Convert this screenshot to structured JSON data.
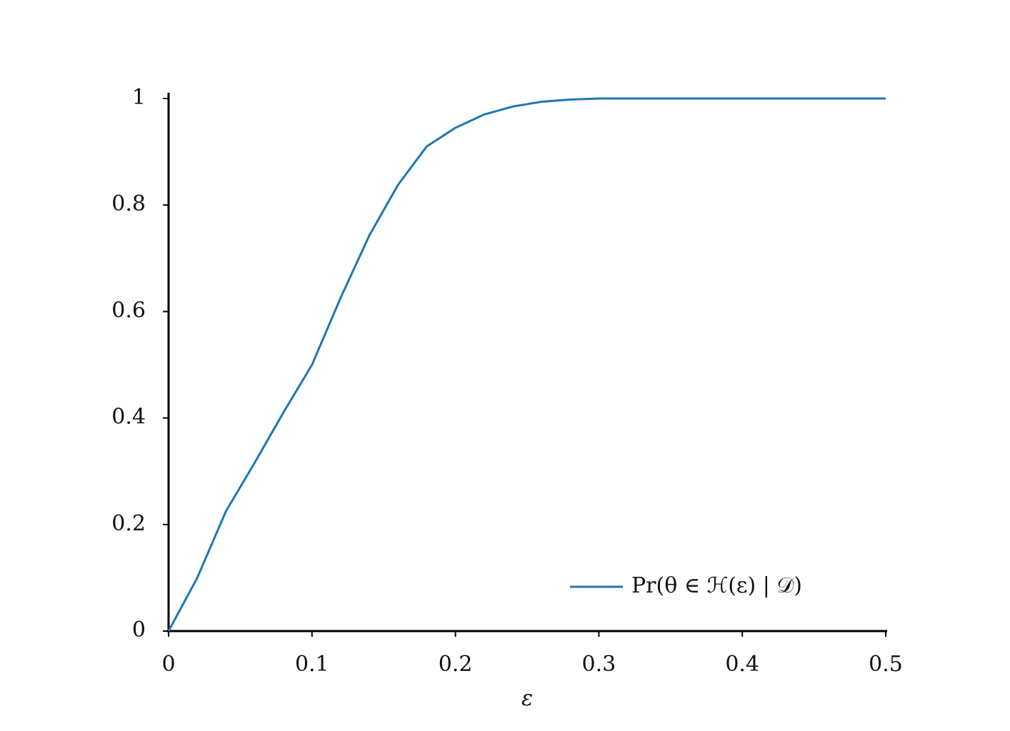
{
  "chart_data": {
    "type": "line",
    "x_label": "ε",
    "x": [
      0,
      0.02,
      0.04,
      0.06,
      0.08,
      0.1,
      0.12,
      0.14,
      0.16,
      0.18,
      0.2,
      0.22,
      0.24,
      0.26,
      0.28,
      0.3,
      0.35,
      0.4,
      0.45,
      0.5
    ],
    "series": [
      {
        "name": "Pr(θ ∈ ℋ(ε) | 𝒟)",
        "color": "#1f77b4",
        "values": [
          0,
          0.1,
          0.225,
          0.316,
          0.41,
          0.5,
          0.626,
          0.743,
          0.838,
          0.91,
          0.945,
          0.97,
          0.985,
          0.994,
          0.998,
          1,
          1,
          1,
          1,
          1
        ]
      }
    ],
    "xlim": [
      0,
      0.5
    ],
    "xticks": [
      0,
      0.1,
      0.2,
      0.3,
      0.4,
      0.5
    ],
    "ylim": [
      0,
      1
    ],
    "yticks": [
      0,
      0.2,
      0.4,
      0.6,
      0.8,
      1
    ],
    "grid": false,
    "legend": "lower right"
  }
}
